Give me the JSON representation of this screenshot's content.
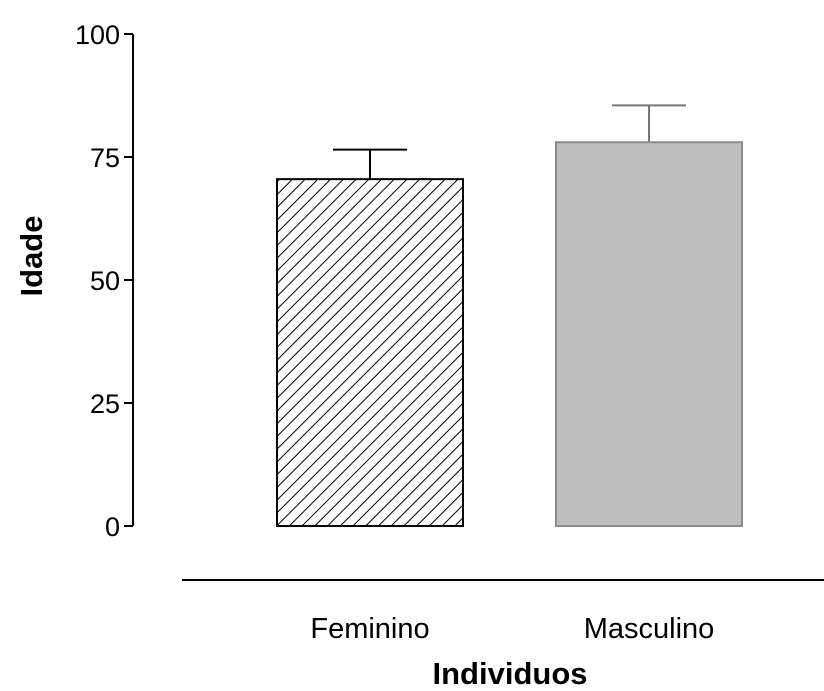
{
  "chart_data": {
    "type": "bar",
    "categories": [
      "Feminino",
      "Masculino"
    ],
    "values": [
      70.5,
      78
    ],
    "errors": [
      6,
      7.5
    ],
    "xlabel": "Individuos",
    "ylabel": "Idade",
    "ylim": [
      0,
      100
    ],
    "yticks": [
      0,
      25,
      50,
      75,
      100
    ],
    "bar_styles": [
      "diagonal-hatch",
      "solid-gray"
    ],
    "colors": {
      "bar_fill_gray": "#bebebe",
      "bar_stroke_gray": "#8c8c8c",
      "axis": "#000000"
    },
    "grid": false
  }
}
